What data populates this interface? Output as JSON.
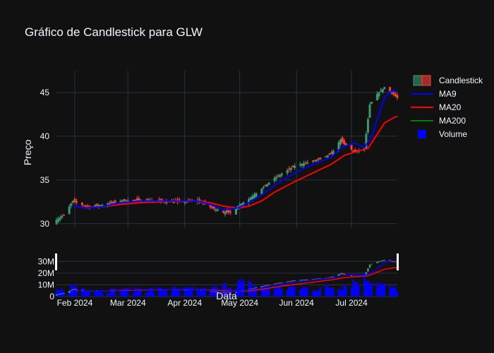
{
  "chart_data": {
    "type": "candlestick",
    "title": "Gráfico de Candlestick para GLW",
    "ylabel": "Preço",
    "xlabel": "Data",
    "date_range": [
      "2024-01-22",
      "2024-07-26"
    ],
    "price_axis": {
      "range": [
        29.5,
        47.5
      ],
      "ticks": [
        30,
        35,
        40,
        45
      ]
    },
    "volume_axis": {
      "range": [
        0,
        35000000
      ],
      "ticks": [
        0,
        10000000,
        20000000,
        30000000
      ],
      "tick_labels": [
        "0",
        "10M",
        "20M",
        "30M"
      ]
    },
    "x_ticks": [
      {
        "date": "2024-02-01",
        "label": "Feb 2024"
      },
      {
        "date": "2024-03-01",
        "label": "Mar 2024"
      },
      {
        "date": "2024-04-01",
        "label": "Apr 2024"
      },
      {
        "date": "2024-05-01",
        "label": "May 2024"
      },
      {
        "date": "2024-06-01",
        "label": "Jun 2024"
      },
      {
        "date": "2024-07-01",
        "label": "Jul 2024"
      }
    ],
    "legend": [
      "Candlestick",
      "MA9",
      "MA20",
      "MA200",
      "Volume"
    ],
    "colors": {
      "increasing": "#3d9970",
      "decreasing": "#ff4136",
      "ma9": "#0000ff",
      "ma20": "#ff0000",
      "ma200": "#008000",
      "volume": "#0000ff",
      "background": "#111111",
      "grid": "#283442"
    },
    "close_anchors": [
      [
        "2024-01-22",
        30.4
      ],
      [
        "2024-01-26",
        31.0
      ],
      [
        "2024-01-31",
        32.6
      ],
      [
        "2024-02-07",
        32.0
      ],
      [
        "2024-02-15",
        32.1
      ],
      [
        "2024-02-26",
        32.6
      ],
      [
        "2024-03-08",
        32.7
      ],
      [
        "2024-03-20",
        32.6
      ],
      [
        "2024-04-01",
        32.5
      ],
      [
        "2024-04-08",
        32.7
      ],
      [
        "2024-04-15",
        31.9
      ],
      [
        "2024-04-22",
        31.3
      ],
      [
        "2024-04-26",
        31.3
      ],
      [
        "2024-04-30",
        32.0
      ],
      [
        "2024-05-06",
        32.8
      ],
      [
        "2024-05-13",
        34.0
      ],
      [
        "2024-05-20",
        35.2
      ],
      [
        "2024-05-24",
        35.7
      ],
      [
        "2024-05-31",
        36.6
      ],
      [
        "2024-06-07",
        37.0
      ],
      [
        "2024-06-14",
        37.4
      ],
      [
        "2024-06-20",
        38.0
      ],
      [
        "2024-06-25",
        39.6
      ],
      [
        "2024-06-28",
        38.9
      ],
      [
        "2024-07-03",
        38.2
      ],
      [
        "2024-07-08",
        38.6
      ],
      [
        "2024-07-11",
        43.6
      ],
      [
        "2024-07-15",
        44.8
      ],
      [
        "2024-07-19",
        45.6
      ],
      [
        "2024-07-23",
        45.0
      ],
      [
        "2024-07-26",
        44.4
      ]
    ],
    "ma9_anchors": [
      [
        "2024-01-31",
        32.0
      ],
      [
        "2024-02-07",
        31.8
      ],
      [
        "2024-02-15",
        31.9
      ],
      [
        "2024-02-26",
        32.4
      ],
      [
        "2024-03-08",
        32.6
      ],
      [
        "2024-03-20",
        32.6
      ],
      [
        "2024-04-08",
        32.6
      ],
      [
        "2024-04-15",
        32.2
      ],
      [
        "2024-04-22",
        31.6
      ],
      [
        "2024-04-30",
        31.8
      ],
      [
        "2024-05-06",
        32.4
      ],
      [
        "2024-05-13",
        33.3
      ],
      [
        "2024-05-20",
        34.4
      ],
      [
        "2024-05-31",
        35.8
      ],
      [
        "2024-06-07",
        36.5
      ],
      [
        "2024-06-14",
        37.1
      ],
      [
        "2024-06-20",
        37.6
      ],
      [
        "2024-06-26",
        38.8
      ],
      [
        "2024-07-03",
        39.2
      ],
      [
        "2024-07-08",
        38.7
      ],
      [
        "2024-07-12",
        40.0
      ],
      [
        "2024-07-16",
        42.5
      ],
      [
        "2024-07-19",
        44.4
      ],
      [
        "2024-07-23",
        45.2
      ],
      [
        "2024-07-26",
        45.1
      ]
    ],
    "ma20_anchors": [
      [
        "2024-02-07",
        31.9
      ],
      [
        "2024-02-15",
        31.9
      ],
      [
        "2024-02-26",
        32.2
      ],
      [
        "2024-03-08",
        32.4
      ],
      [
        "2024-03-20",
        32.5
      ],
      [
        "2024-04-08",
        32.6
      ],
      [
        "2024-04-15",
        32.4
      ],
      [
        "2024-04-22",
        32.0
      ],
      [
        "2024-04-30",
        31.8
      ],
      [
        "2024-05-06",
        32.0
      ],
      [
        "2024-05-13",
        32.6
      ],
      [
        "2024-05-20",
        33.6
      ],
      [
        "2024-05-31",
        34.8
      ],
      [
        "2024-06-07",
        35.5
      ],
      [
        "2024-06-14",
        36.2
      ],
      [
        "2024-06-20",
        36.8
      ],
      [
        "2024-06-27",
        37.8
      ],
      [
        "2024-07-03",
        38.2
      ],
      [
        "2024-07-10",
        38.6
      ],
      [
        "2024-07-15",
        40.2
      ],
      [
        "2024-07-19",
        41.5
      ],
      [
        "2024-07-23",
        42.0
      ],
      [
        "2024-07-26",
        42.3
      ]
    ],
    "volume_anchors_millions": [
      [
        "2024-01-22",
        4
      ],
      [
        "2024-01-31",
        9
      ],
      [
        "2024-02-15",
        5
      ],
      [
        "2024-03-20",
        6
      ],
      [
        "2024-04-15",
        6
      ],
      [
        "2024-04-30",
        12
      ],
      [
        "2024-05-13",
        8
      ],
      [
        "2024-06-14",
        7
      ],
      [
        "2024-06-27",
        10
      ],
      [
        "2024-07-11",
        17
      ],
      [
        "2024-07-19",
        9
      ],
      [
        "2024-07-26",
        6
      ]
    ]
  }
}
